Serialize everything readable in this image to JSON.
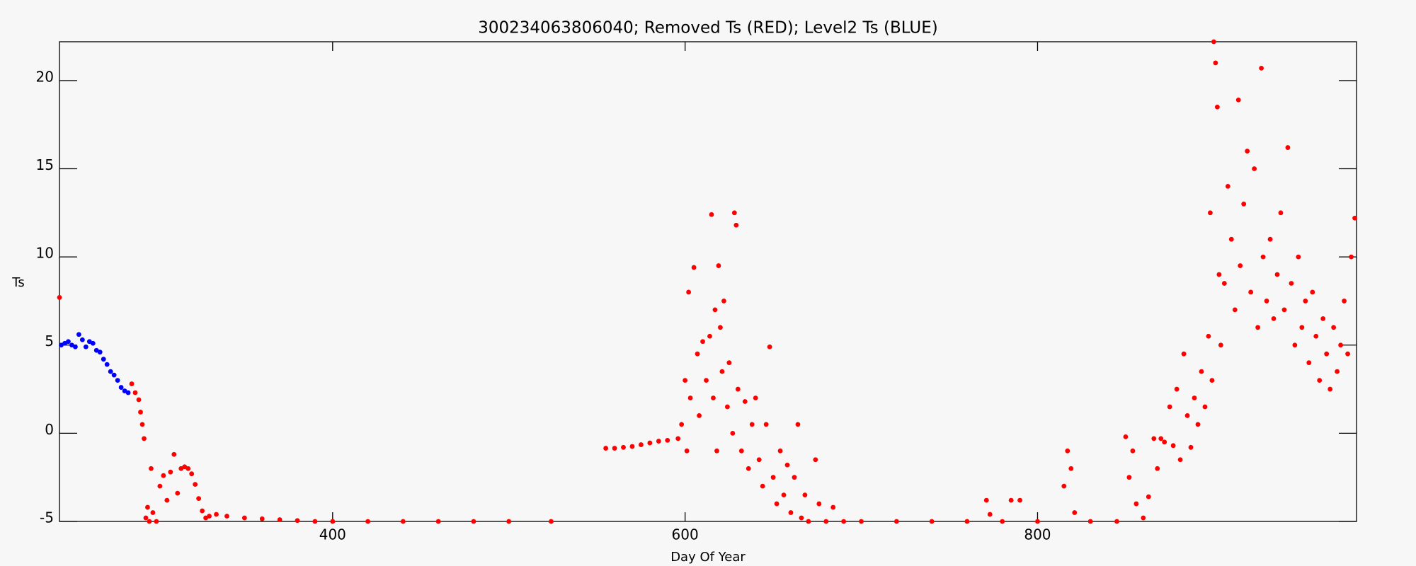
{
  "chart_data": {
    "type": "scatter",
    "title": "300234063806040; Removed Ts (RED); Level2 Ts (BLUE)",
    "x_label": "Day Of Year",
    "y_label": "Ts",
    "xlim": [
      245,
      981
    ],
    "ylim": [
      -5,
      22.2
    ],
    "xticks": [
      400,
      600,
      800
    ],
    "yticks": [
      -5,
      0,
      5,
      10,
      15,
      20
    ],
    "series": [
      {
        "color": "#ff0000",
        "x": [
          245,
          286,
          288,
          290,
          291,
          292,
          293,
          294,
          295,
          296,
          297,
          298,
          300,
          302,
          304,
          306,
          308,
          310,
          312,
          314,
          316,
          318,
          320,
          322,
          324,
          326,
          328,
          330,
          334,
          340,
          350,
          360,
          370,
          380,
          390,
          400,
          420,
          440,
          460,
          480,
          500,
          524,
          555,
          560,
          565,
          570,
          575,
          580,
          585,
          590,
          596,
          598,
          600,
          601,
          602,
          603,
          605,
          607,
          608,
          610,
          612,
          614,
          615,
          616,
          617,
          618,
          619,
          620,
          621,
          622,
          624,
          625,
          627,
          628,
          629,
          630,
          632,
          634,
          636,
          638,
          640,
          642,
          644,
          646,
          648,
          650,
          652,
          654,
          656,
          658,
          660,
          662,
          664,
          666,
          668,
          670,
          674,
          676,
          680,
          684,
          690,
          700,
          720,
          740,
          760,
          771,
          773,
          780,
          785,
          790,
          800,
          815,
          817,
          819,
          821,
          830,
          845,
          850,
          852,
          854,
          856,
          860,
          863,
          866,
          868,
          870,
          872,
          875,
          877,
          879,
          881,
          883,
          885,
          887,
          889,
          891,
          893,
          895,
          897,
          898,
          899,
          900,
          901,
          902,
          903,
          904,
          906,
          908,
          910,
          912,
          914,
          915,
          917,
          919,
          921,
          923,
          925,
          927,
          928,
          930,
          932,
          934,
          936,
          938,
          940,
          942,
          944,
          946,
          948,
          950,
          952,
          954,
          956,
          958,
          960,
          962,
          964,
          966,
          968,
          970,
          972,
          974,
          976,
          978,
          980
        ],
        "values": [
          7.7,
          2.8,
          2.3,
          1.9,
          1.2,
          0.5,
          -0.3,
          -4.8,
          -4.2,
          -5.0,
          -2.0,
          -4.5,
          -5.0,
          -3.0,
          -2.4,
          -3.8,
          -2.2,
          -1.2,
          -3.4,
          -2.0,
          -1.9,
          -2.0,
          -2.3,
          -2.9,
          -3.7,
          -4.4,
          -4.8,
          -4.7,
          -4.6,
          -4.7,
          -4.8,
          -4.85,
          -4.9,
          -4.95,
          -5.0,
          -5.0,
          -5.0,
          -5.0,
          -5.0,
          -5.0,
          -5.0,
          -5.0,
          -0.85,
          -0.85,
          -0.8,
          -0.75,
          -0.65,
          -0.55,
          -0.45,
          -0.4,
          -0.3,
          0.5,
          3.0,
          -1.0,
          8.0,
          2.0,
          9.4,
          4.5,
          1.0,
          5.2,
          3.0,
          5.5,
          12.4,
          2.0,
          7.0,
          -1.0,
          9.5,
          6.0,
          3.5,
          7.5,
          1.5,
          4.0,
          0.0,
          12.5,
          11.8,
          2.5,
          -1.0,
          1.8,
          -2.0,
          0.5,
          2.0,
          -1.5,
          -3.0,
          0.5,
          4.9,
          -2.5,
          -4.0,
          -1.0,
          -3.5,
          -1.8,
          -4.5,
          -2.5,
          0.5,
          -4.8,
          -3.5,
          -5.0,
          -1.5,
          -4.0,
          -5.0,
          -4.2,
          -5.0,
          -5.0,
          -5.0,
          -5.0,
          -5.0,
          -3.8,
          -4.6,
          -5.0,
          -3.8,
          -3.8,
          -5.0,
          -3.0,
          -1.0,
          -2.0,
          -4.5,
          -5.0,
          -5.0,
          -0.2,
          -2.5,
          -1.0,
          -4.0,
          -4.8,
          -3.6,
          -0.3,
          -2.0,
          -0.3,
          -0.5,
          1.5,
          -0.7,
          2.5,
          -1.5,
          4.5,
          1.0,
          -0.8,
          2.0,
          0.5,
          3.5,
          1.5,
          5.5,
          12.5,
          3.0,
          22.2,
          21.0,
          18.5,
          9.0,
          5.0,
          8.5,
          14.0,
          11.0,
          7.0,
          18.9,
          9.5,
          13.0,
          16.0,
          8.0,
          15.0,
          6.0,
          20.7,
          10.0,
          7.5,
          11.0,
          6.5,
          9.0,
          12.5,
          7.0,
          16.2,
          8.5,
          5.0,
          10.0,
          6.0,
          7.5,
          4.0,
          8.0,
          5.5,
          3.0,
          6.5,
          4.5,
          2.5,
          6.0,
          3.5,
          5.0,
          7.5,
          4.5,
          10.0,
          12.2
        ]
      },
      {
        "color": "#0000ff",
        "x": [
          246,
          248,
          250,
          252,
          254,
          256,
          258,
          260,
          262,
          264,
          266,
          268,
          270,
          272,
          274,
          276,
          278,
          280,
          282,
          284
        ],
        "values": [
          5.0,
          5.1,
          5.2,
          5.0,
          4.9,
          5.6,
          5.3,
          4.9,
          5.2,
          5.1,
          4.7,
          4.6,
          4.2,
          3.9,
          3.5,
          3.3,
          3.0,
          2.6,
          2.4,
          2.3
        ]
      }
    ]
  }
}
